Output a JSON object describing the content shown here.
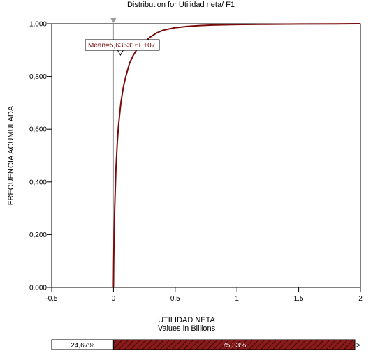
{
  "chart_data": {
    "type": "line",
    "title": "Distribution for Utilidad neta/ F1",
    "xlabel": "UTILIDAD NETA",
    "xlabel_sub": "Values in Billions",
    "ylabel": "FRECUENCIA ACUMULADA",
    "xlim": [
      -0.5,
      2
    ],
    "ylim": [
      0,
      1
    ],
    "x_ticks": [
      -0.5,
      0,
      0.5,
      1,
      1.5,
      2
    ],
    "x_tick_labels": [
      "-0,5",
      "0",
      "0,5",
      "1",
      "1,5",
      "2"
    ],
    "y_ticks": [
      0,
      0.2,
      0.4,
      0.6,
      0.8,
      1
    ],
    "y_tick_labels": [
      "0.000",
      "0,200",
      "0,400",
      "0,600",
      "0,800",
      "1,000"
    ],
    "grid": false,
    "series": [
      {
        "x": [
          0,
          0.002,
          0.005,
          0.01,
          0.02,
          0.03,
          0.04,
          0.06,
          0.08,
          0.1,
          0.13,
          0.16,
          0.2,
          0.25,
          0.3,
          0.35,
          0.4,
          0.5,
          0.6,
          0.7,
          0.8,
          1,
          1.2,
          1.5,
          1.8,
          2
        ],
        "y": [
          0,
          0.1,
          0.2,
          0.3,
          0.45,
          0.54,
          0.61,
          0.7,
          0.76,
          0.8,
          0.85,
          0.88,
          0.91,
          0.93,
          0.95,
          0.965,
          0.975,
          0.985,
          0.99,
          0.993,
          0.995,
          0.997,
          0.998,
          0.999,
          0.9995,
          1
        ]
      }
    ],
    "mean_marker": {
      "label": "Mean=5,636316E+07",
      "x": 0.0564
    },
    "delimiter": {
      "x": 0
    },
    "probability_bar": {
      "left_label": "24,67%",
      "right_label": "75,33%",
      "left_fraction": 0.2467,
      "arrow": ">"
    },
    "colors": {
      "line": "#7a0b0b",
      "bar_fill": "#8b1a1a",
      "delimiter": "#999999"
    }
  }
}
